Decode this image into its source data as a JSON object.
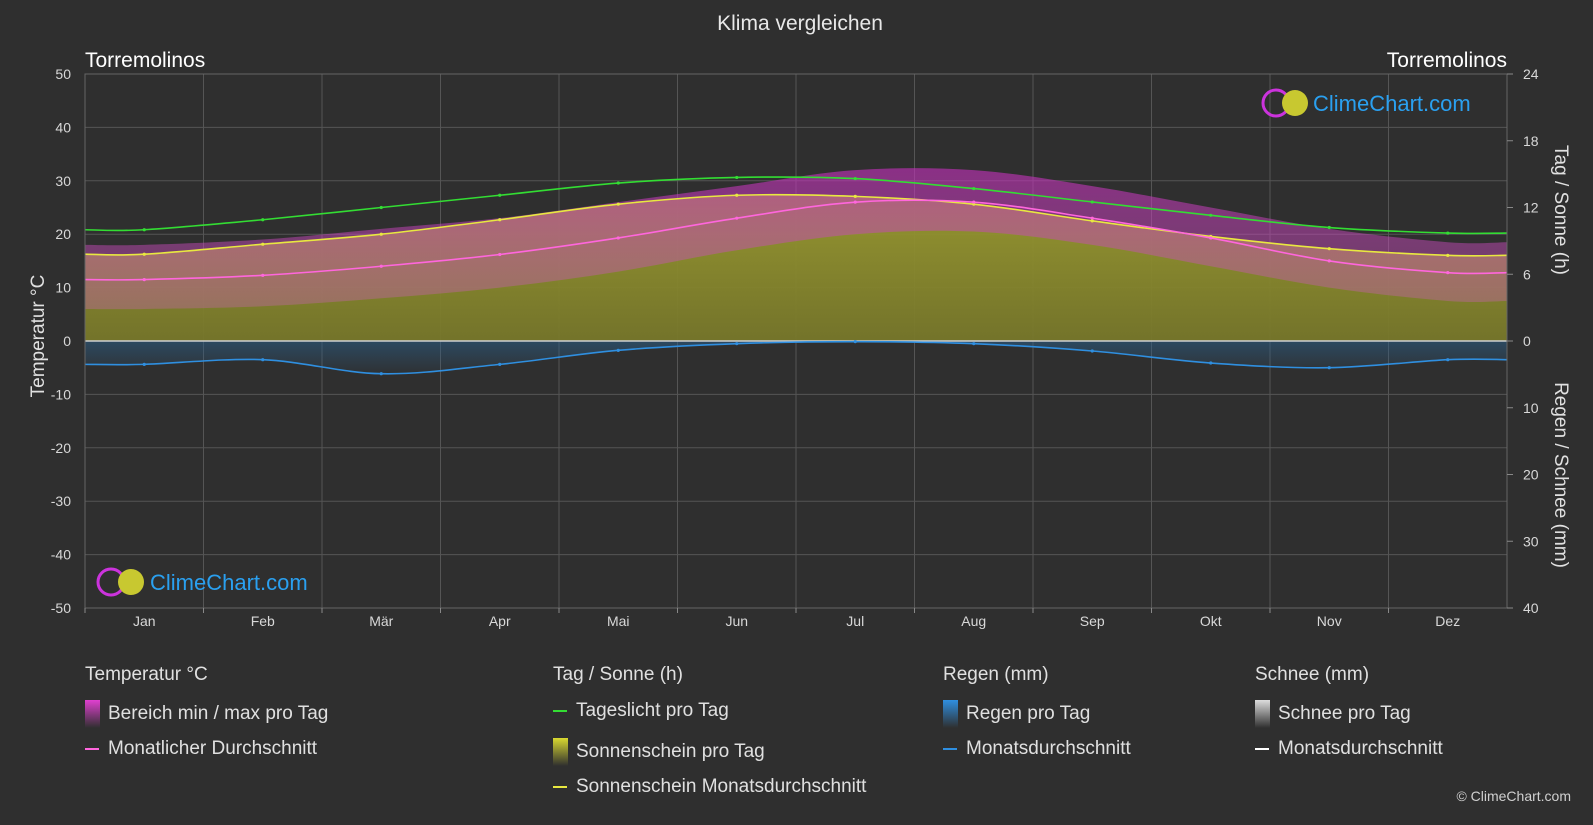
{
  "title": "Klima vergleichen",
  "location_left": "Torremolinos",
  "location_right": "Torremolinos",
  "brand": "ClimeChart.com",
  "copyright": "© ClimeChart.com",
  "chart_data": {
    "type": "area",
    "categories": [
      "Jan",
      "Feb",
      "Mär",
      "Apr",
      "Mai",
      "Jun",
      "Jul",
      "Aug",
      "Sep",
      "Okt",
      "Nov",
      "Dez"
    ],
    "y_left": {
      "label": "Temperatur °C",
      "range": [
        -50,
        50
      ],
      "ticks": [
        50,
        40,
        30,
        20,
        10,
        0,
        -10,
        -20,
        -30,
        -40,
        -50
      ]
    },
    "y_right_top": {
      "label": "Tag / Sonne (h)",
      "range": [
        0,
        24
      ],
      "ticks": [
        24,
        18,
        12,
        6,
        0
      ]
    },
    "y_right_bottom": {
      "label": "Regen / Schnee (mm)",
      "range": [
        0,
        40
      ],
      "ticks": [
        10,
        20,
        30,
        40
      ]
    },
    "grid": true,
    "series": [
      {
        "name": "Tageslicht pro Tag",
        "unit": "h",
        "color": "#33dd33",
        "values": [
          10.0,
          10.9,
          12.0,
          13.1,
          14.2,
          14.7,
          14.6,
          13.7,
          12.5,
          11.3,
          10.2,
          9.7
        ]
      },
      {
        "name": "Sonnenschein Monatsdurchschnitt",
        "unit": "h",
        "color": "#e8e840",
        "values": [
          7.8,
          8.7,
          9.6,
          10.9,
          12.3,
          13.1,
          13.0,
          12.3,
          10.8,
          9.4,
          8.3,
          7.7
        ]
      },
      {
        "name": "Monatlicher Durchschnitt",
        "unit": "°C",
        "color": "#ff66dd",
        "values": [
          11.5,
          12.3,
          14.0,
          16.2,
          19.3,
          23.0,
          26.0,
          26.0,
          23.0,
          19.3,
          15.0,
          12.8
        ]
      },
      {
        "name": "Bereich min / max pro Tag",
        "unit": "°C",
        "min": [
          6,
          6.5,
          8,
          10,
          13,
          17,
          20,
          20.5,
          18,
          14,
          10,
          7.5
        ],
        "max": [
          18,
          19,
          21,
          23,
          26,
          29,
          32,
          32,
          29,
          25,
          21,
          18.5
        ]
      },
      {
        "name": "Regen Monatsdurchschnitt",
        "unit": "mm",
        "color": "#2f8fe0",
        "values": [
          3.5,
          2.8,
          4.9,
          3.5,
          1.4,
          0.4,
          0.1,
          0.4,
          1.5,
          3.3,
          4.0,
          2.8
        ]
      }
    ]
  },
  "legend": {
    "groups": [
      {
        "title": "Temperatur °C",
        "items": [
          {
            "label": "Bereich min / max pro Tag",
            "kind": "block",
            "color": "#e040d0"
          },
          {
            "label": "Monatlicher Durchschnitt",
            "kind": "line",
            "color": "#ff66dd"
          }
        ]
      },
      {
        "title": "Tag / Sonne (h)",
        "items": [
          {
            "label": "Tageslicht pro Tag",
            "kind": "line",
            "color": "#33dd33"
          },
          {
            "label": "Sonnenschein pro Tag",
            "kind": "block",
            "color": "#d8d830"
          },
          {
            "label": "Sonnenschein Monatsdurchschnitt",
            "kind": "line",
            "color": "#e8e840"
          }
        ]
      },
      {
        "title": "Regen (mm)",
        "items": [
          {
            "label": "Regen pro Tag",
            "kind": "block",
            "color": "#2f8fe0"
          },
          {
            "label": "Monatsdurchschnitt",
            "kind": "line",
            "color": "#2f8fe0"
          }
        ]
      },
      {
        "title": "Schnee (mm)",
        "items": [
          {
            "label": "Schnee pro Tag",
            "kind": "block",
            "color": "#dddddd"
          },
          {
            "label": "Monatsdurchschnitt",
            "kind": "line",
            "color": "#ffffff"
          }
        ]
      }
    ]
  }
}
